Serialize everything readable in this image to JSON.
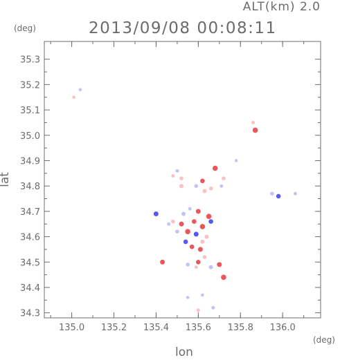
{
  "header": {
    "altitude_label": "ALT(km) 2.0",
    "title": "2013/09/08 00:08:11"
  },
  "chart_data": {
    "type": "scatter",
    "title": "2013/09/08 00:08:11",
    "xlabel": "lon",
    "ylabel": "lat",
    "x_unit": "(deg)",
    "y_unit": "(deg)",
    "xlim": [
      134.87,
      136.18
    ],
    "ylim": [
      34.28,
      35.37
    ],
    "x_ticks": [
      135.0,
      135.2,
      135.4,
      135.6,
      135.8,
      136.0
    ],
    "x_tick_labels": [
      "135.0",
      "135.2",
      "135.4",
      "135.6",
      "135.8",
      "136.0"
    ],
    "y_ticks": [
      34.3,
      34.4,
      34.5,
      34.6,
      34.7,
      34.8,
      34.9,
      35.0,
      35.1,
      35.2,
      35.3
    ],
    "y_tick_labels": [
      "34.3",
      "34.4",
      "34.5",
      "34.6",
      "34.7",
      "34.8",
      "34.9",
      "35.0",
      "35.1",
      "35.2",
      "35.3"
    ],
    "grid": false,
    "colors": {
      "positive": "#e8383c",
      "positive_light": "#f7b6b8",
      "negative": "#3a3af0",
      "negative_light": "#b9b9f7",
      "axis": "#6b6b6b"
    },
    "series": [
      {
        "values": [
          {
            "lon": 135.52,
            "lat": 34.65,
            "v": 0.8
          },
          {
            "lon": 135.55,
            "lat": 34.62,
            "v": 0.9
          },
          {
            "lon": 135.58,
            "lat": 34.66,
            "v": 0.7
          },
          {
            "lon": 135.62,
            "lat": 34.64,
            "v": 0.9
          },
          {
            "lon": 135.6,
            "lat": 34.7,
            "v": 0.8
          },
          {
            "lon": 135.64,
            "lat": 34.6,
            "v": 0.6
          },
          {
            "lon": 135.57,
            "lat": 34.56,
            "v": 0.7
          },
          {
            "lon": 135.61,
            "lat": 34.55,
            "v": 0.8
          },
          {
            "lon": 135.63,
            "lat": 34.52,
            "v": 0.5
          },
          {
            "lon": 135.54,
            "lat": 34.58,
            "v": -0.7
          },
          {
            "lon": 135.59,
            "lat": 34.61,
            "v": -0.8
          },
          {
            "lon": 135.53,
            "lat": 34.69,
            "v": -0.6
          },
          {
            "lon": 135.66,
            "lat": 34.66,
            "v": -0.7
          },
          {
            "lon": 135.5,
            "lat": 34.62,
            "v": -0.5
          },
          {
            "lon": 135.56,
            "lat": 34.71,
            "v": -0.4
          },
          {
            "lon": 135.65,
            "lat": 34.68,
            "v": 0.9
          },
          {
            "lon": 135.62,
            "lat": 34.58,
            "v": 0.6
          },
          {
            "lon": 135.6,
            "lat": 34.5,
            "v": 0.7
          },
          {
            "lon": 135.66,
            "lat": 34.48,
            "v": -0.6
          },
          {
            "lon": 135.7,
            "lat": 34.49,
            "v": 0.8
          },
          {
            "lon": 135.72,
            "lat": 34.44,
            "v": 0.9
          },
          {
            "lon": 135.59,
            "lat": 34.48,
            "v": 0.4
          },
          {
            "lon": 135.55,
            "lat": 34.49,
            "v": -0.5
          },
          {
            "lon": 135.48,
            "lat": 34.66,
            "v": 0.5
          },
          {
            "lon": 135.46,
            "lat": 34.65,
            "v": -0.4
          },
          {
            "lon": 135.4,
            "lat": 34.69,
            "v": -0.8
          },
          {
            "lon": 135.52,
            "lat": 34.83,
            "v": 0.5
          },
          {
            "lon": 135.5,
            "lat": 34.86,
            "v": -0.4
          },
          {
            "lon": 135.52,
            "lat": 34.8,
            "v": 0.6
          },
          {
            "lon": 135.48,
            "lat": 34.84,
            "v": 0.4
          },
          {
            "lon": 135.62,
            "lat": 34.82,
            "v": 0.7
          },
          {
            "lon": 135.63,
            "lat": 34.78,
            "v": 0.6
          },
          {
            "lon": 135.59,
            "lat": 34.8,
            "v": -0.5
          },
          {
            "lon": 135.66,
            "lat": 34.79,
            "v": 0.5
          },
          {
            "lon": 135.68,
            "lat": 34.87,
            "v": 0.9
          },
          {
            "lon": 135.71,
            "lat": 34.8,
            "v": -0.4
          },
          {
            "lon": 135.72,
            "lat": 34.83,
            "v": 0.5
          },
          {
            "lon": 135.86,
            "lat": 35.05,
            "v": 0.4
          },
          {
            "lon": 135.87,
            "lat": 35.02,
            "v": 0.9
          },
          {
            "lon": 135.95,
            "lat": 34.77,
            "v": -0.5
          },
          {
            "lon": 135.98,
            "lat": 34.76,
            "v": -0.7
          },
          {
            "lon": 136.06,
            "lat": 34.77,
            "v": -0.4
          },
          {
            "lon": 135.62,
            "lat": 34.37,
            "v": -0.3
          },
          {
            "lon": 135.55,
            "lat": 34.36,
            "v": -0.3
          },
          {
            "lon": 135.67,
            "lat": 34.32,
            "v": -0.4
          },
          {
            "lon": 135.6,
            "lat": 34.31,
            "v": 0.4
          },
          {
            "lon": 135.01,
            "lat": 35.15,
            "v": 0.3
          },
          {
            "lon": 135.04,
            "lat": 35.18,
            "v": -0.3
          },
          {
            "lon": 135.43,
            "lat": 34.5,
            "v": 0.8
          },
          {
            "lon": 135.78,
            "lat": 34.9,
            "v": -0.3
          }
        ]
      }
    ]
  }
}
